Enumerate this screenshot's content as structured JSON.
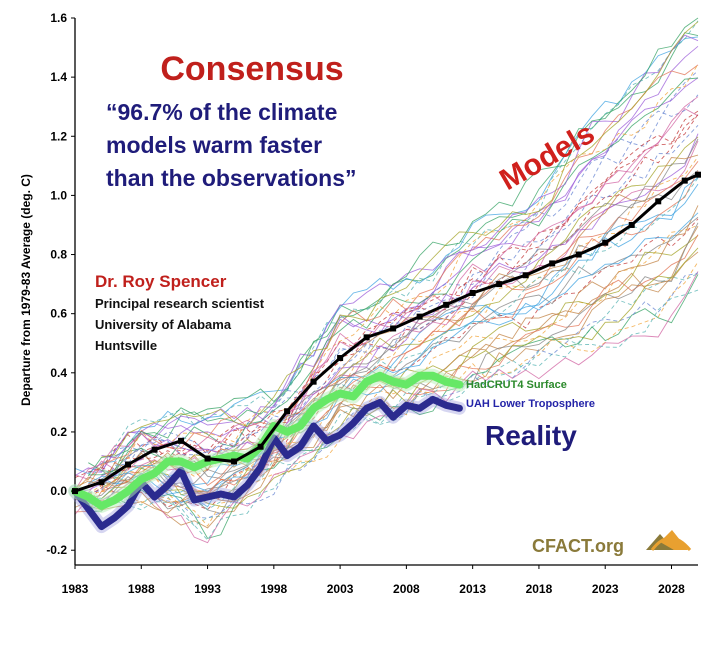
{
  "chart_data": {
    "type": "line",
    "title": "Consensus",
    "quote": "“96.7% of the climate models warm faster than the observations”",
    "quote_lines": [
      "“96.7% of the climate",
      "models warm faster",
      "than the observations”"
    ],
    "author": "Dr. Roy Spencer",
    "affiliation_lines": [
      "Principal research scientist",
      "University of Alabama",
      "Huntsville"
    ],
    "ylabel": "Departure from 1979-83 Average (deg. C)",
    "xlabel": "",
    "xlim": [
      1983,
      2030
    ],
    "ylim": [
      -0.25,
      1.6
    ],
    "x_ticks": [
      1983,
      1988,
      1993,
      1998,
      2003,
      2008,
      2013,
      2018,
      2023,
      2028
    ],
    "y_ticks": [
      -0.2,
      0.0,
      0.2,
      0.4,
      0.6,
      0.8,
      1.0,
      1.2,
      1.4,
      1.6
    ],
    "y_tick_labels": [
      "-0.2",
      "0.0",
      "0.2",
      "0.4",
      "0.6",
      "0.8",
      "1.0",
      "1.2",
      "1.4",
      "1.6"
    ],
    "grid": false,
    "annotations": {
      "models": "Models",
      "reality": "Reality"
    },
    "brand": "CFACT.org",
    "colors": {
      "title": "#c0201c",
      "quote": "#1f1c7a",
      "models_label": "#d0201c",
      "model_mean": "#000000",
      "hadcrut4": "#66e866",
      "uah": "#2b2b8f"
    },
    "series": [
      {
        "name": "HadCRUT4 Surface",
        "style": "thick-green",
        "x": [
          1983,
          1984,
          1985,
          1986,
          1987,
          1988,
          1989,
          1990,
          1991,
          1992,
          1993,
          1994,
          1995,
          1996,
          1997,
          1998,
          1999,
          2000,
          2001,
          2002,
          2003,
          2004,
          2005,
          2006,
          2007,
          2008,
          2009,
          2010,
          2011,
          2012
        ],
        "y": [
          0.0,
          -0.02,
          -0.05,
          -0.03,
          0.0,
          0.04,
          0.06,
          0.1,
          0.1,
          0.08,
          0.1,
          0.11,
          0.12,
          0.11,
          0.15,
          0.22,
          0.2,
          0.22,
          0.28,
          0.31,
          0.33,
          0.32,
          0.37,
          0.39,
          0.37,
          0.36,
          0.39,
          0.39,
          0.37,
          0.36
        ]
      },
      {
        "name": "UAH Lower Troposphere",
        "style": "thick-navy",
        "x": [
          1983,
          1984,
          1985,
          1986,
          1987,
          1988,
          1989,
          1990,
          1991,
          1992,
          1993,
          1994,
          1995,
          1996,
          1997,
          1998,
          1999,
          2000,
          2001,
          2002,
          2003,
          2004,
          2005,
          2006,
          2007,
          2008,
          2009,
          2010,
          2011,
          2012
        ],
        "y": [
          0.0,
          -0.06,
          -0.12,
          -0.09,
          -0.05,
          0.03,
          -0.02,
          0.02,
          0.07,
          -0.03,
          -0.02,
          -0.01,
          -0.02,
          0.02,
          0.08,
          0.18,
          0.12,
          0.15,
          0.22,
          0.17,
          0.19,
          0.23,
          0.28,
          0.3,
          0.25,
          0.29,
          0.28,
          0.31,
          0.29,
          0.28
        ]
      },
      {
        "name": "",
        "style": "model-mean",
        "x": [
          1983,
          1985,
          1987,
          1989,
          1991,
          1993,
          1995,
          1997,
          1999,
          2001,
          2003,
          2005,
          2007,
          2009,
          2011,
          2013,
          2015,
          2017,
          2019,
          2021,
          2023,
          2025,
          2027,
          2029,
          2030
        ],
        "y": [
          0.0,
          0.03,
          0.09,
          0.14,
          0.17,
          0.11,
          0.1,
          0.15,
          0.27,
          0.37,
          0.45,
          0.52,
          0.55,
          0.59,
          0.63,
          0.67,
          0.7,
          0.73,
          0.77,
          0.8,
          0.84,
          0.9,
          0.98,
          1.05,
          1.07
        ]
      }
    ],
    "model_runs": {
      "count": 48,
      "x": [
        1983,
        1988,
        1993,
        1998,
        2003,
        2008,
        2013,
        2018,
        2023,
        2028,
        2030
      ],
      "envelope_low": [
        -0.05,
        0.0,
        -0.15,
        0.05,
        0.2,
        0.28,
        0.35,
        0.42,
        0.5,
        0.6,
        0.7
      ],
      "envelope_high": [
        0.05,
        0.22,
        0.28,
        0.3,
        0.6,
        0.7,
        0.9,
        1.05,
        1.3,
        1.5,
        1.58
      ]
    }
  }
}
